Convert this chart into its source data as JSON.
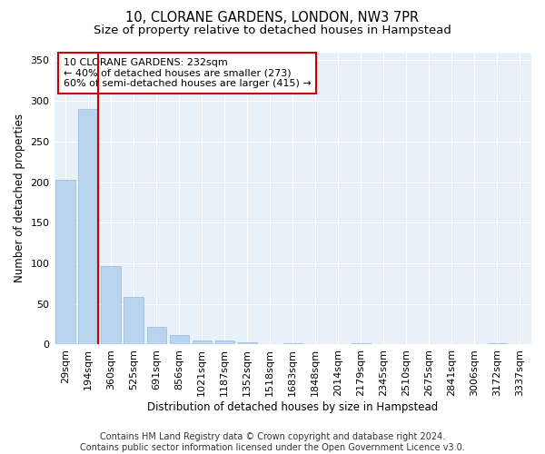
{
  "title1": "10, CLORANE GARDENS, LONDON, NW3 7PR",
  "title2": "Size of property relative to detached houses in Hampstead",
  "xlabel": "Distribution of detached houses by size in Hampstead",
  "ylabel": "Number of detached properties",
  "bar_labels": [
    "29sqm",
    "194sqm",
    "360sqm",
    "525sqm",
    "691sqm",
    "856sqm",
    "1021sqm",
    "1187sqm",
    "1352sqm",
    "1518sqm",
    "1683sqm",
    "1848sqm",
    "2014sqm",
    "2179sqm",
    "2345sqm",
    "2510sqm",
    "2675sqm",
    "2841sqm",
    "3006sqm",
    "3172sqm",
    "3337sqm"
  ],
  "bar_values": [
    203,
    290,
    97,
    59,
    22,
    12,
    5,
    5,
    3,
    0,
    2,
    0,
    0,
    2,
    0,
    0,
    0,
    0,
    0,
    2,
    0
  ],
  "bar_color": "#b8d4ee",
  "bar_edgecolor": "#9ab8d8",
  "vline_x_index": 1.5,
  "vline_color": "#cc0000",
  "annotation_text": "10 CLORANE GARDENS: 232sqm\n← 40% of detached houses are smaller (273)\n60% of semi-detached houses are larger (415) →",
  "annotation_box_color": "#ffffff",
  "annotation_box_edgecolor": "#cc0000",
  "ylim": [
    0,
    360
  ],
  "yticks": [
    0,
    50,
    100,
    150,
    200,
    250,
    300,
    350
  ],
  "background_color": "#e8f0f8",
  "footer_text": "Contains HM Land Registry data © Crown copyright and database right 2024.\nContains public sector information licensed under the Open Government Licence v3.0.",
  "title_fontsize": 10.5,
  "subtitle_fontsize": 9.5,
  "axis_label_fontsize": 8.5,
  "tick_fontsize": 8,
  "annotation_fontsize": 8,
  "footer_fontsize": 7
}
